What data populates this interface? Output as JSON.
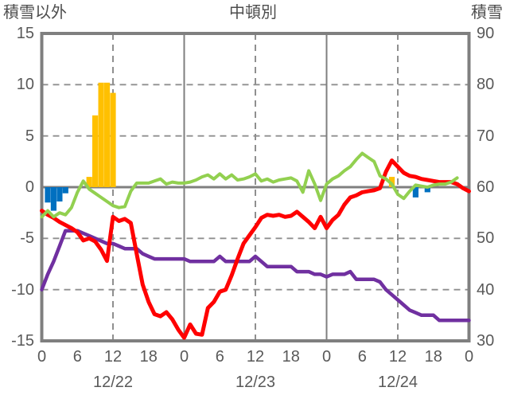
{
  "header": {
    "left_axis_title": "積雪以外",
    "title": "中頓別",
    "right_axis_title": "積雪"
  },
  "colors": {
    "red": "#ff0000",
    "green": "#92d050",
    "purple": "#7030a0",
    "orange": "#ffc000",
    "blue": "#0070c0",
    "axis": "#7f7f7f",
    "grid": "#8f8f8f",
    "text": "#595959"
  },
  "chart_data": {
    "type": "line+bar",
    "title": "中頓別",
    "x_unit": "hour (0-72, three days)",
    "left_axis": {
      "label": "積雪以外",
      "ticks": [
        15,
        10,
        5,
        0,
        -5,
        -10,
        -15
      ],
      "range": [
        -15,
        15
      ],
      "dashed_grid_values": [
        10,
        5,
        -5,
        -10
      ]
    },
    "right_axis": {
      "label": "積雪",
      "ticks": [
        90,
        80,
        70,
        60,
        50,
        40,
        30
      ],
      "range": [
        30,
        90
      ]
    },
    "x_ticks": {
      "hours": [
        0,
        6,
        12,
        18,
        24,
        30,
        36,
        42,
        48,
        54,
        60,
        66,
        72
      ],
      "labels": [
        "0",
        "6",
        "12",
        "18",
        "0",
        "6",
        "12",
        "18",
        "0",
        "6",
        "12",
        "18",
        "0"
      ]
    },
    "date_labels": [
      {
        "hour": 12,
        "label": "12/22"
      },
      {
        "hour": 36,
        "label": "12/23"
      },
      {
        "hour": 60,
        "label": "12/24"
      }
    ],
    "vertical_grid": {
      "dashed_hours": [
        12,
        36,
        60
      ],
      "solid_hours": [
        24,
        48
      ]
    },
    "series": [
      {
        "name": "purple-line-snow-depth",
        "axis": "right",
        "color_key": "purple",
        "width": 4.5,
        "start_hour": 0,
        "values": [
          40,
          43,
          45.5,
          48.5,
          51.5,
          51.5,
          51.5,
          51,
          50.5,
          50,
          49.5,
          49,
          49,
          48.5,
          48,
          48,
          48,
          47,
          46.5,
          46,
          46,
          46,
          46,
          46,
          46,
          45.5,
          45.5,
          45.5,
          45.5,
          45.5,
          46.5,
          45.5,
          45.5,
          45.5,
          45.5,
          45.5,
          46.5,
          45.5,
          44.5,
          44.5,
          44.5,
          44.5,
          44.5,
          43.5,
          43.5,
          43.5,
          43,
          43,
          42.5,
          43,
          43,
          43,
          43.5,
          42,
          42,
          42,
          42,
          41.5,
          40,
          39,
          38,
          37,
          36,
          35.5,
          35,
          35,
          35,
          34,
          34,
          34,
          34,
          34,
          34
        ]
      },
      {
        "name": "red-line",
        "axis": "left",
        "color_key": "red",
        "width": 5,
        "start_hour": 0,
        "values": [
          -2.3,
          -2.7,
          -3.0,
          -3.4,
          -3.7,
          -4.0,
          -4.4,
          -5.2,
          -5.0,
          -5.3,
          -6.1,
          -7.2,
          -2.9,
          -3.3,
          -3.1,
          -3.5,
          -6.5,
          -9.5,
          -11.2,
          -12.4,
          -12.6,
          -12.2,
          -12.9,
          -13.9,
          -14.7,
          -13.4,
          -14.3,
          -14.4,
          -11.8,
          -11.2,
          -10.2,
          -10.0,
          -8.6,
          -7.0,
          -5.5,
          -4.7,
          -3.9,
          -3.0,
          -2.7,
          -2.8,
          -2.7,
          -2.9,
          -2.8,
          -2.4,
          -2.9,
          -3.4,
          -4.0,
          -2.9,
          -4.0,
          -3.2,
          -2.7,
          -1.7,
          -1.0,
          -0.8,
          -0.5,
          -0.4,
          -0.3,
          -0.1,
          1.5,
          2.6,
          2.0,
          1.4,
          1.1,
          1.0,
          0.8,
          0.7,
          0.6,
          0.5,
          0.5,
          0.5,
          0.3,
          -0.1,
          -0.4
        ]
      },
      {
        "name": "green-line",
        "axis": "left",
        "color_key": "green",
        "width": 4,
        "start_hour": 0,
        "values": [
          -2.9,
          -2.3,
          -2.9,
          -2.5,
          -2.7,
          -2.0,
          -0.5,
          0.6,
          -0.2,
          -0.6,
          -1.0,
          -1.4,
          -1.8,
          -2.0,
          -1.9,
          -0.4,
          0.4,
          0.4,
          0.4,
          0.6,
          0.8,
          0.3,
          0.5,
          0.4,
          0.4,
          0.5,
          0.7,
          1.0,
          1.2,
          0.8,
          1.3,
          0.8,
          1.2,
          0.7,
          0.8,
          1.0,
          1.3,
          0.6,
          0.8,
          0.5,
          0.7,
          0.8,
          0.9,
          0.6,
          -0.5,
          1.6,
          0.3,
          -1.3,
          0.3,
          0.8,
          1.1,
          1.6,
          2.0,
          2.7,
          3.3,
          2.9,
          2.5,
          1.1,
          0.8,
          0.3,
          -0.7,
          -1.1,
          -0.4,
          0.2,
          0.1,
          0.0,
          0.2,
          0.3,
          0.3,
          0.5,
          0.9
        ]
      }
    ],
    "bars": [
      {
        "name": "orange-bars",
        "axis": "left",
        "color_key": "orange",
        "points": [
          [
            8,
            1.0
          ],
          [
            9,
            7.0
          ],
          [
            10,
            10.2
          ],
          [
            11,
            10.2
          ],
          [
            12,
            9.2
          ],
          [
            59,
            1.0
          ]
        ]
      },
      {
        "name": "blue-bars",
        "axis": "left",
        "color_key": "blue",
        "points": [
          [
            1,
            -1.5
          ],
          [
            2,
            -2.3
          ],
          [
            3,
            -1.4
          ],
          [
            4,
            -0.6
          ],
          [
            63,
            -1.0
          ],
          [
            65,
            -0.5
          ]
        ]
      }
    ]
  }
}
